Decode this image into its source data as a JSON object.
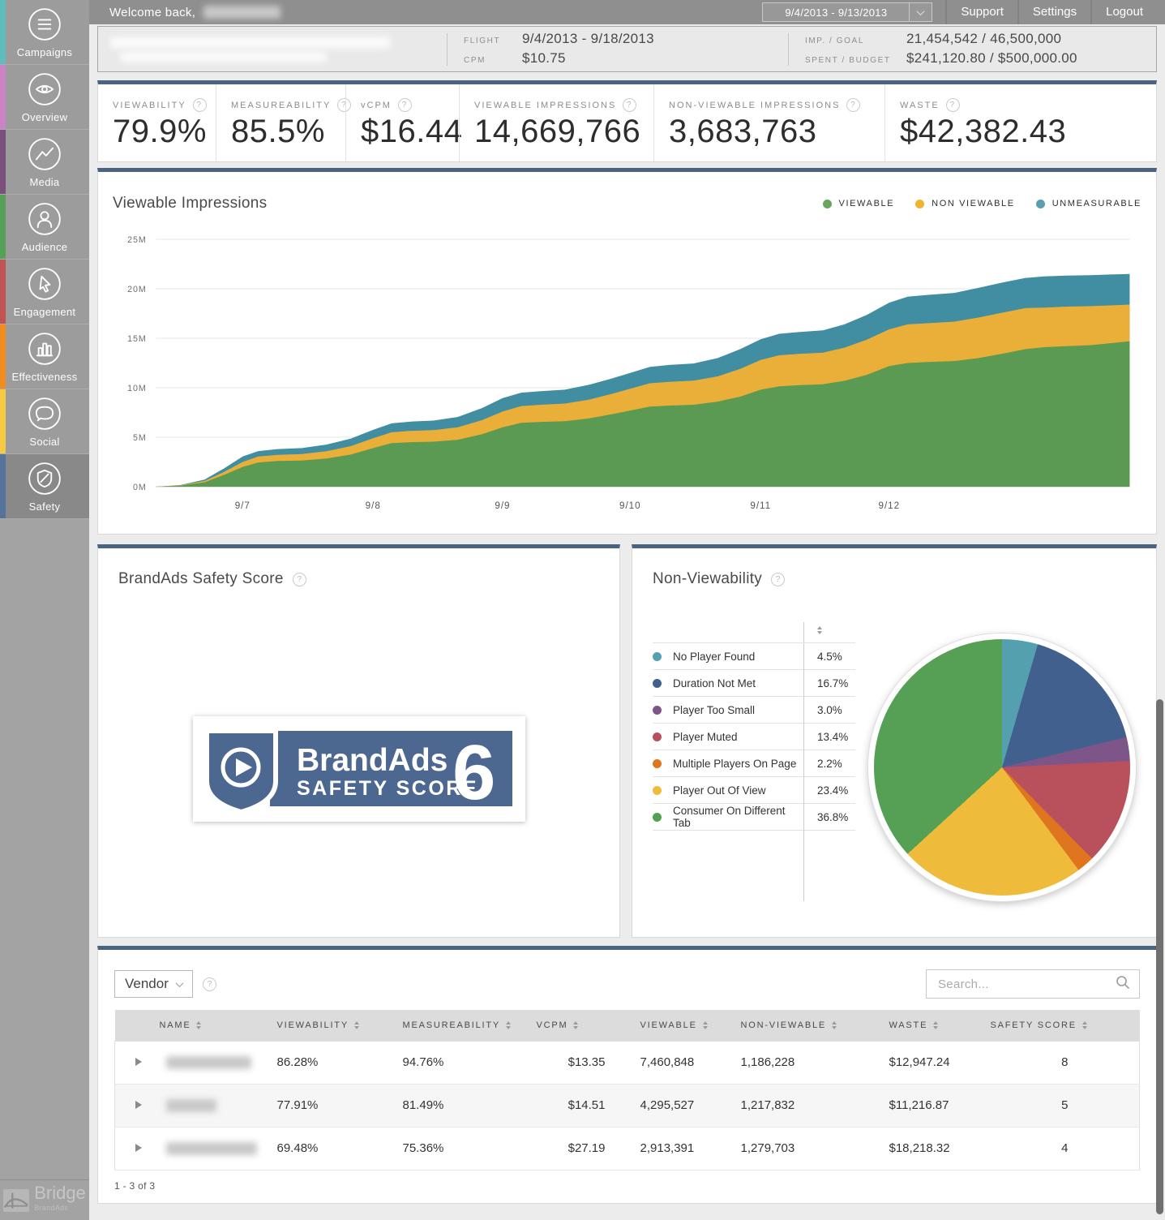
{
  "topbar": {
    "welcome": "Welcome back,",
    "date_range": "9/4/2013 - 9/13/2013",
    "links": [
      "Support",
      "Settings",
      "Logout"
    ]
  },
  "campaign_bar": {
    "flight_label": "FLIGHT",
    "flight_value": "9/4/2013 - 9/18/2013",
    "cpm_label": "CPM",
    "cpm_value": "$10.75",
    "imp_goal_label": "IMP. / GOAL",
    "imp_goal_value": "21,454,542 / 46,500,000",
    "spent_budget_label": "SPENT / BUDGET",
    "spent_budget_value": "$241,120.80 / $500,000.00"
  },
  "sidebar": {
    "items": [
      {
        "label": "Campaigns",
        "color": "#5fbdbd",
        "selected": false
      },
      {
        "label": "Overview",
        "color": "#cb83c6",
        "selected": false
      },
      {
        "label": "Media",
        "color": "#7c4f7c",
        "selected": false
      },
      {
        "label": "Audience",
        "color": "#55a157",
        "selected": false
      },
      {
        "label": "Engagement",
        "color": "#c25353",
        "selected": false
      },
      {
        "label": "Effectiveness",
        "color": "#f18c1e",
        "selected": false
      },
      {
        "label": "Social",
        "color": "#f7c843",
        "selected": false
      },
      {
        "label": "Safety",
        "color": "#54749e",
        "selected": true
      }
    ]
  },
  "logo": {
    "name": "Bridge",
    "sub": "BrandAds"
  },
  "kpis": [
    {
      "label": "VIEWABILITY",
      "value": "79.9%"
    },
    {
      "label": "MEASUREABILITY",
      "value": "85.5%"
    },
    {
      "label": "vCPM",
      "value": "$16.44"
    },
    {
      "label": "VIEWABLE IMPRESSIONS",
      "value": "14,669,766"
    },
    {
      "label": "NON-VIEWABLE IMPRESSIONS",
      "value": "3,683,763"
    },
    {
      "label": "WASTE",
      "value": "$42,382.43"
    }
  ],
  "chart_data": [
    {
      "type": "area",
      "title": "Viewable Impressions",
      "stacked": true,
      "unit": "millions of impressions (cumulative)",
      "ylim": [
        0,
        25
      ],
      "y_ticks": [
        "0M",
        "5M",
        "10M",
        "15M",
        "20M",
        "25M"
      ],
      "x_ticks": [
        {
          "label": "9/7",
          "t": 0.089
        },
        {
          "label": "9/8",
          "t": 0.223
        },
        {
          "label": "9/9",
          "t": 0.356
        },
        {
          "label": "9/10",
          "t": 0.487
        },
        {
          "label": "9/11",
          "t": 0.621
        },
        {
          "label": "9/12",
          "t": 0.753
        }
      ],
      "legend": [
        {
          "label": "VIEWABLE",
          "color": "#6aa55e"
        },
        {
          "label": "NON VIEWABLE",
          "color": "#f0b42f"
        },
        {
          "label": "UNMEASURABLE",
          "color": "#5b9fae"
        }
      ],
      "x": [
        0,
        0.025,
        0.05,
        0.07,
        0.089,
        0.105,
        0.125,
        0.15,
        0.175,
        0.2,
        0.223,
        0.242,
        0.262,
        0.285,
        0.31,
        0.335,
        0.356,
        0.375,
        0.395,
        0.42,
        0.445,
        0.467,
        0.487,
        0.507,
        0.527,
        0.552,
        0.577,
        0.6,
        0.621,
        0.64,
        0.66,
        0.685,
        0.707,
        0.73,
        0.753,
        0.772,
        0.792,
        0.82,
        0.845,
        0.87,
        0.893,
        0.912,
        0.935,
        0.96,
        0.98,
        1
      ],
      "series": [
        {
          "name": "VIEWABLE",
          "color": "#5b9a52",
          "cum": [
            0,
            0.1,
            0.45,
            1.2,
            2.0,
            2.45,
            2.6,
            2.65,
            2.85,
            3.25,
            3.9,
            4.4,
            4.5,
            4.55,
            4.75,
            5.3,
            6.0,
            6.45,
            6.55,
            6.62,
            6.9,
            7.3,
            7.7,
            8.1,
            8.2,
            8.28,
            8.6,
            9.1,
            9.8,
            10.15,
            10.25,
            10.35,
            10.7,
            11.3,
            12.2,
            12.5,
            12.6,
            12.7,
            13.0,
            13.45,
            13.9,
            14.1,
            14.2,
            14.3,
            14.5,
            14.7
          ]
        },
        {
          "name": "NON VIEWABLE",
          "color": "#eaaf39",
          "cum": [
            0,
            0.13,
            0.58,
            1.5,
            2.5,
            3.05,
            3.22,
            3.3,
            3.58,
            4.1,
            4.9,
            5.5,
            5.65,
            5.72,
            6.0,
            6.73,
            7.6,
            8.15,
            8.28,
            8.4,
            8.8,
            9.35,
            9.9,
            10.45,
            10.6,
            10.72,
            11.15,
            11.9,
            12.8,
            13.28,
            13.42,
            13.55,
            14.05,
            14.85,
            15.9,
            16.4,
            16.52,
            16.68,
            17.1,
            17.6,
            18.05,
            18.1,
            18.2,
            18.25,
            18.32,
            18.4
          ]
        },
        {
          "name": "UNMEASURABLE",
          "color": "#418da1",
          "cum": [
            0,
            0.16,
            0.72,
            1.85,
            3.05,
            3.6,
            3.8,
            3.9,
            4.25,
            4.85,
            5.75,
            6.4,
            6.58,
            6.68,
            7.05,
            7.95,
            8.95,
            9.5,
            9.65,
            9.8,
            10.3,
            10.9,
            11.5,
            12.1,
            12.3,
            12.45,
            13.0,
            13.9,
            14.9,
            15.45,
            15.62,
            15.8,
            16.4,
            17.35,
            18.6,
            19.2,
            19.38,
            19.58,
            20.1,
            20.65,
            21.1,
            21.25,
            21.33,
            21.38,
            21.44,
            21.5
          ]
        }
      ]
    },
    {
      "type": "pie",
      "title": "Non-Viewability",
      "slices": [
        {
          "label": "No Player Found",
          "pct": "4.5%",
          "value": 4.5,
          "color": "#55a0af"
        },
        {
          "label": "Duration Not Met",
          "pct": "16.7%",
          "value": 16.7,
          "color": "#41608d"
        },
        {
          "label": "Player Too Small",
          "pct": "3.0%",
          "value": 3.0,
          "color": "#7e5588"
        },
        {
          "label": "Player Muted",
          "pct": "13.4%",
          "value": 13.4,
          "color": "#b8515c"
        },
        {
          "label": "Multiple Players On Page",
          "pct": "2.2%",
          "value": 2.2,
          "color": "#e0751f"
        },
        {
          "label": "Player Out Of View",
          "pct": "23.4%",
          "value": 23.4,
          "color": "#eebc3a"
        },
        {
          "label": "Consumer On Different Tab",
          "pct": "36.8%",
          "value": 36.8,
          "color": "#55a054"
        }
      ]
    }
  ],
  "safety_panel": {
    "title": "BrandAds Safety Score",
    "badge_brand": "BrandAds",
    "badge_line2": "SAFETY SCORE",
    "score": "6"
  },
  "nv_panel": {
    "title": "Non-Viewability"
  },
  "table": {
    "filter_label": "Vendor",
    "search_placeholder": "Search...",
    "columns": [
      "NAME",
      "VIEWABILITY",
      "MEASUREABILITY",
      "VCPM",
      "VIEWABLE",
      "NON-VIEWABLE",
      "WASTE",
      "SAFETY SCORE"
    ],
    "rows": [
      {
        "cells": [
          "86.28%",
          "94.76%",
          "$13.35",
          "7,460,848",
          "1,186,228",
          "$12,947.24",
          "8"
        ]
      },
      {
        "cells": [
          "77.91%",
          "81.49%",
          "$14.51",
          "4,295,527",
          "1,217,832",
          "$11,216.87",
          "5"
        ]
      },
      {
        "cells": [
          "69.48%",
          "75.36%",
          "$27.19",
          "2,913,391",
          "1,279,703",
          "$18,218.32",
          "4"
        ]
      }
    ],
    "footer": "1 - 3 of 3"
  }
}
